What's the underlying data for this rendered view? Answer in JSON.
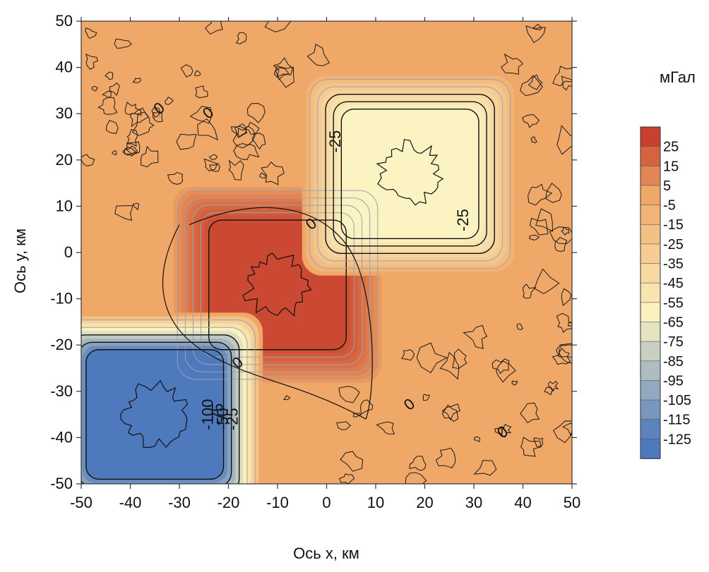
{
  "chart_data": {
    "type": "heatmap",
    "subtype": "filled-contour",
    "title": "",
    "xlabel": "Ось x, км",
    "ylabel": "Ось y, км",
    "xlim": [
      -50,
      50
    ],
    "ylim": [
      -50,
      50
    ],
    "x_ticks": [
      -50,
      -40,
      -30,
      -20,
      -10,
      0,
      10,
      20,
      30,
      40,
      50
    ],
    "y_ticks": [
      -50,
      -40,
      -30,
      -20,
      -10,
      0,
      10,
      20,
      30,
      40,
      50
    ],
    "colorbar": {
      "unit": "мГал",
      "levels": [
        25,
        15,
        5,
        -5,
        -15,
        -25,
        -35,
        -45,
        -55,
        -65,
        -75,
        -85,
        -95,
        -105,
        -115,
        -125
      ],
      "colors": {
        "high": "#c8412e",
        "zero": "#f0a868",
        "mid": "#fbf3c2",
        "low": "#4f79bd"
      }
    },
    "anomalies": [
      {
        "type": "positive",
        "center": [
          -10,
          -7
        ],
        "half_width": 14,
        "peak_value": 28
      },
      {
        "type": "negative",
        "center": [
          17,
          17
        ],
        "half_width": 14,
        "peak_value": -62
      },
      {
        "type": "negative",
        "center": [
          -35,
          -35
        ],
        "half_width": 14,
        "peak_value": -125
      }
    ],
    "contour_labels": [
      {
        "text": "0",
        "x": -34,
        "y": 31
      },
      {
        "text": "0",
        "x": -24,
        "y": 30
      },
      {
        "text": "0",
        "x": -3,
        "y": 6
      },
      {
        "text": "0",
        "x": -18,
        "y": -24
      },
      {
        "text": "0",
        "x": 17,
        "y": -33
      },
      {
        "text": "0",
        "x": 36,
        "y": -39
      },
      {
        "text": "-25",
        "x": 2,
        "y": 24
      },
      {
        "text": "-25",
        "x": 28,
        "y": 7
      },
      {
        "text": "-100",
        "x": -24,
        "y": -35
      },
      {
        "text": "-75",
        "x": -22,
        "y": -35
      },
      {
        "text": "-50",
        "x": -21,
        "y": -36
      },
      {
        "text": "-25",
        "x": -19,
        "y": -36
      }
    ]
  }
}
